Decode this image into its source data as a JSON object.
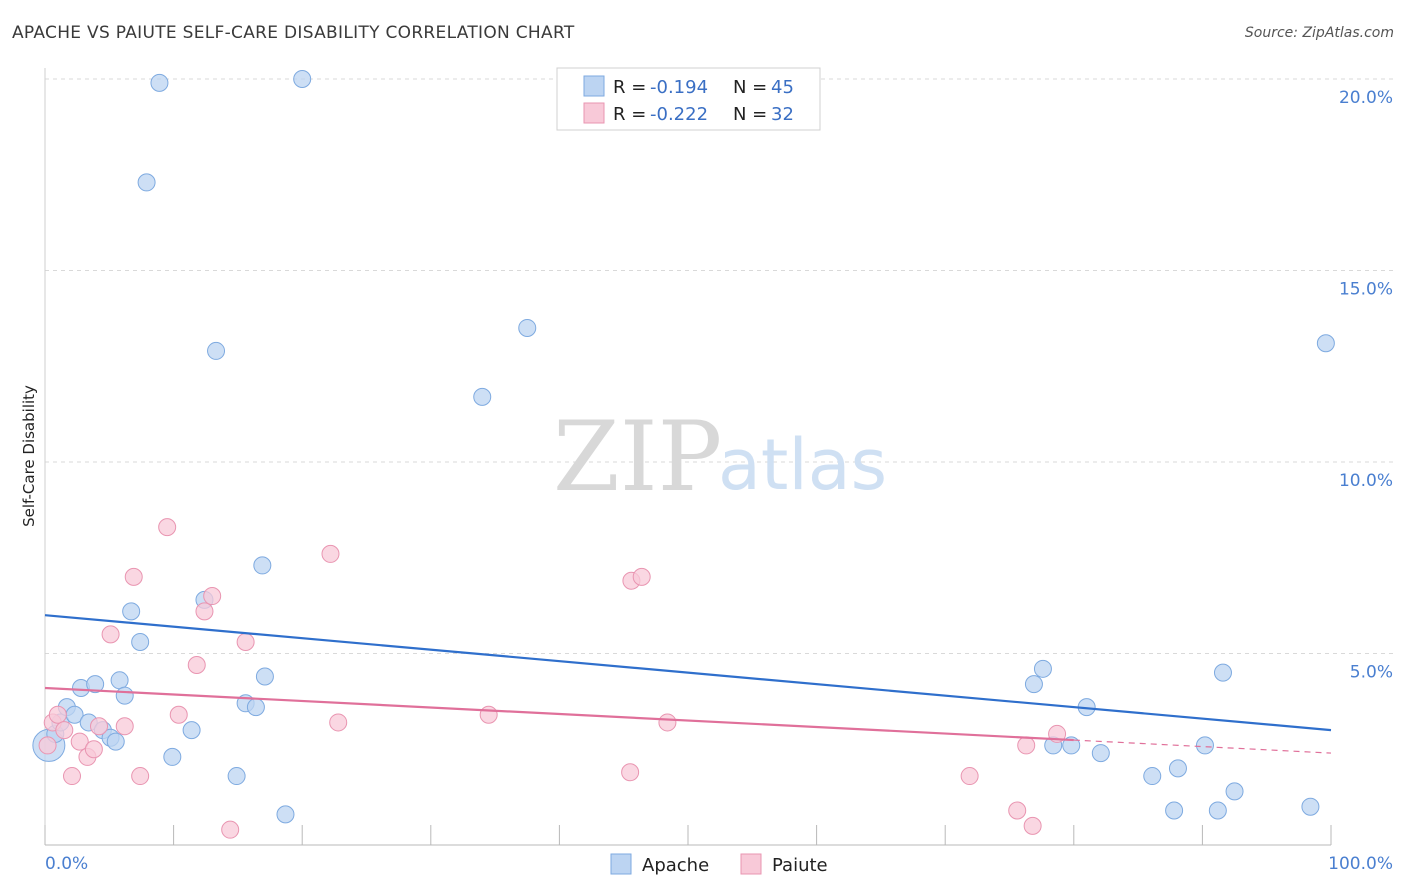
{
  "header": {
    "title": "APACHE VS PAIUTE SELF-CARE DISABILITY CORRELATION CHART",
    "source": "Source: ZipAtlas.com"
  },
  "watermark": {
    "zip": "ZIP",
    "atlas": "atlas"
  },
  "colors": {
    "apache_fill": "#bcd4f2",
    "apache_stroke": "#7eaae0",
    "apache_line": "#2f6fcc",
    "paiute_fill": "#f8c9d8",
    "paiute_stroke": "#e995b1",
    "paiute_line": "#e0709a",
    "grid": "#d9d9d9",
    "tick_text": "#4a7fd0"
  },
  "legend": {
    "rows": [
      {
        "r_label": "R =",
        "r_value": "-0.194",
        "n_label": "N =",
        "n_value": "45"
      },
      {
        "r_label": "R =",
        "r_value": "-0.222",
        "n_label": "N =",
        "n_value": "32"
      }
    ]
  },
  "chart_data": {
    "type": "scatter",
    "title": "APACHE VS PAIUTE SELF-CARE DISABILITY CORRELATION CHART",
    "xlabel": "",
    "ylabel": "Self-Care Disability",
    "xlim": [
      0,
      100
    ],
    "ylim": [
      0,
      20.5
    ],
    "x_tick_labels": [
      "0.0%",
      "100.0%"
    ],
    "y_ticks": [
      5,
      10,
      15,
      20
    ],
    "y_tick_labels": [
      "5.0%",
      "10.0%",
      "15.0%",
      "20.0%"
    ],
    "series": [
      {
        "name": "Apache",
        "r": -0.194,
        "n": 45,
        "trend": {
          "x": [
            0,
            100
          ],
          "y": [
            6.0,
            3.0
          ]
        },
        "points": [
          [
            0.3,
            2.6
          ],
          [
            0.8,
            2.9
          ],
          [
            1.2,
            3.2
          ],
          [
            1.7,
            3.6
          ],
          [
            2.3,
            3.4
          ],
          [
            2.8,
            4.1
          ],
          [
            3.4,
            3.2
          ],
          [
            3.9,
            4.2
          ],
          [
            4.5,
            3.0
          ],
          [
            5.1,
            2.8
          ],
          [
            5.5,
            2.7
          ],
          [
            5.8,
            4.3
          ],
          [
            6.2,
            3.9
          ],
          [
            6.7,
            6.1
          ],
          [
            7.4,
            5.3
          ],
          [
            7.9,
            17.3
          ],
          [
            8.9,
            19.9
          ],
          [
            9.9,
            2.3
          ],
          [
            11.4,
            3.0
          ],
          [
            12.4,
            6.4
          ],
          [
            13.3,
            12.9
          ],
          [
            14.9,
            1.8
          ],
          [
            15.6,
            3.7
          ],
          [
            16.4,
            3.6
          ],
          [
            16.9,
            7.3
          ],
          [
            17.1,
            4.4
          ],
          [
            18.7,
            0.8
          ],
          [
            20.0,
            20.0
          ],
          [
            34.0,
            11.7
          ],
          [
            37.5,
            13.5
          ],
          [
            76.9,
            4.2
          ],
          [
            77.6,
            4.6
          ],
          [
            78.4,
            2.6
          ],
          [
            79.8,
            2.6
          ],
          [
            81.0,
            3.6
          ],
          [
            82.1,
            2.4
          ],
          [
            86.1,
            1.8
          ],
          [
            87.8,
            0.9
          ],
          [
            88.1,
            2.0
          ],
          [
            90.2,
            2.6
          ],
          [
            91.2,
            0.9
          ],
          [
            91.6,
            4.5
          ],
          [
            92.5,
            1.4
          ],
          [
            98.4,
            1.0
          ],
          [
            99.6,
            13.1
          ]
        ]
      },
      {
        "name": "Paiute",
        "r": -0.222,
        "n": 32,
        "trend": {
          "x": [
            0,
            100
          ],
          "y": [
            4.1,
            2.4
          ]
        },
        "points": [
          [
            0.2,
            2.6
          ],
          [
            0.6,
            3.2
          ],
          [
            1.0,
            3.4
          ],
          [
            1.5,
            3.0
          ],
          [
            2.1,
            1.8
          ],
          [
            2.7,
            2.7
          ],
          [
            3.3,
            2.3
          ],
          [
            3.8,
            2.5
          ],
          [
            4.2,
            3.1
          ],
          [
            5.1,
            5.5
          ],
          [
            6.2,
            3.1
          ],
          [
            6.9,
            7.0
          ],
          [
            7.4,
            1.8
          ],
          [
            9.5,
            8.3
          ],
          [
            10.4,
            3.4
          ],
          [
            11.8,
            4.7
          ],
          [
            12.4,
            6.1
          ],
          [
            13.0,
            6.5
          ],
          [
            14.4,
            0.4
          ],
          [
            15.6,
            5.3
          ],
          [
            22.2,
            7.6
          ],
          [
            22.8,
            3.2
          ],
          [
            34.5,
            3.4
          ],
          [
            45.5,
            1.9
          ],
          [
            45.6,
            6.9
          ],
          [
            46.4,
            7.0
          ],
          [
            48.4,
            3.2
          ],
          [
            71.9,
            1.8
          ],
          [
            75.6,
            0.9
          ],
          [
            76.8,
            0.5
          ],
          [
            76.3,
            2.6
          ],
          [
            78.7,
            2.9
          ]
        ]
      }
    ],
    "legend_position": "top-center",
    "bottom_legend": [
      "Apache",
      "Paiute"
    ]
  }
}
